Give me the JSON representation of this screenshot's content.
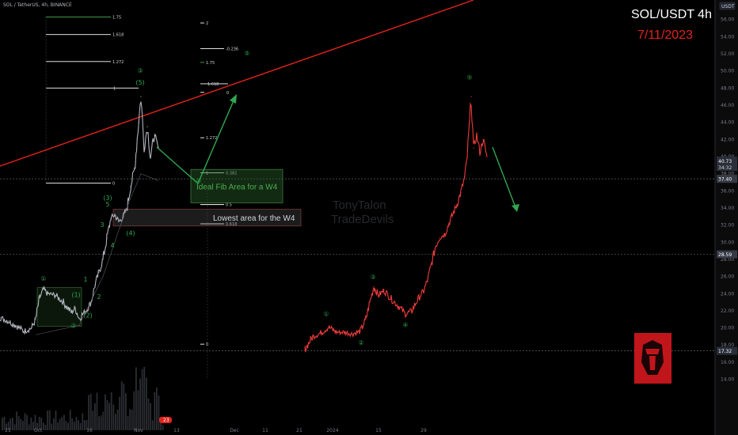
{
  "chart_data": {
    "type": "line",
    "title": "SOL/USDT 4h",
    "subtitle": "7/11/2023",
    "symbol_line": "SOL / TetherUS, 4h, BINANCE",
    "currency_badge": "USDT",
    "watermark_lines": [
      "TonyTalon",
      "TradeDevils"
    ],
    "x_ticks": [
      "21",
      "Oct",
      "16",
      "Nov",
      "13",
      "Dec",
      "11",
      "21",
      "2024",
      "15",
      "29"
    ],
    "y_ticks": [
      "56.00",
      "54.00",
      "52.00",
      "50.00",
      "48.00",
      "46.00",
      "44.00",
      "42.00",
      "40.00",
      "38.00",
      "36.00",
      "34.00",
      "32.00",
      "30.00",
      "28.00",
      "26.00",
      "24.00",
      "22.00",
      "20.00",
      "18.00",
      "16.00",
      "14.00"
    ],
    "ylim": [
      13.0,
      57.6
    ],
    "y_scale": "linear",
    "current_price_label": "40.73",
    "countdown_label": "34:32",
    "price_labels": [
      {
        "text": "37.40",
        "value": 37.4
      },
      {
        "text": "28.59",
        "value": 28.59
      },
      {
        "text": "17.32",
        "value": 17.32
      }
    ],
    "volume_label": "23",
    "series": [
      {
        "values_key": "historical 4h price (grey)",
        "points": [
          [
            0,
            21.2
          ],
          [
            10,
            20.8
          ],
          [
            20,
            20.3
          ],
          [
            30,
            19.6
          ],
          [
            40,
            20.0
          ],
          [
            45,
            21.0
          ],
          [
            50,
            23.5
          ],
          [
            55,
            24.5
          ],
          [
            60,
            24.0
          ],
          [
            70,
            23.8
          ],
          [
            80,
            23.0
          ],
          [
            90,
            21.8
          ],
          [
            95,
            22.3
          ],
          [
            100,
            21.1
          ],
          [
            110,
            22.2
          ],
          [
            115,
            23.0
          ],
          [
            120,
            25.0
          ],
          [
            125,
            26.5
          ],
          [
            130,
            28.0
          ],
          [
            135,
            30.5
          ],
          [
            140,
            32.8
          ],
          [
            145,
            33.2
          ],
          [
            150,
            32.4
          ],
          [
            155,
            32.9
          ],
          [
            160,
            33.8
          ],
          [
            165,
            36.5
          ],
          [
            170,
            38.6
          ],
          [
            175,
            44.0
          ],
          [
            178,
            47.0
          ],
          [
            182,
            41.0
          ],
          [
            186,
            43.5
          ],
          [
            190,
            40.0
          ],
          [
            195,
            42.5
          ],
          [
            200,
            41.0
          ]
        ]
      },
      {
        "values_key": "projected 4h price (red)",
        "points": [
          [
            385,
            17.5
          ],
          [
            395,
            19.0
          ],
          [
            405,
            19.4
          ],
          [
            415,
            20.1
          ],
          [
            425,
            19.5
          ],
          [
            435,
            19.5
          ],
          [
            445,
            19.3
          ],
          [
            455,
            19.6
          ],
          [
            462,
            21.0
          ],
          [
            467,
            23.0
          ],
          [
            472,
            24.8
          ],
          [
            478,
            23.8
          ],
          [
            485,
            24.4
          ],
          [
            495,
            23.3
          ],
          [
            505,
            22.4
          ],
          [
            512,
            21.6
          ],
          [
            520,
            22.0
          ],
          [
            528,
            23.4
          ],
          [
            535,
            24.3
          ],
          [
            540,
            25.6
          ],
          [
            545,
            27.5
          ],
          [
            550,
            29.5
          ],
          [
            555,
            30.5
          ],
          [
            562,
            31.0
          ],
          [
            567,
            32.2
          ],
          [
            572,
            33.3
          ],
          [
            577,
            34.4
          ],
          [
            582,
            35.8
          ],
          [
            587,
            37.6
          ],
          [
            590,
            40.0
          ],
          [
            593,
            44.0
          ],
          [
            595,
            47.0
          ],
          [
            598,
            41.0
          ],
          [
            602,
            42.5
          ],
          [
            606,
            40.5
          ],
          [
            610,
            42.0
          ],
          [
            615,
            40.0
          ]
        ]
      }
    ],
    "fib_levels": [
      {
        "label": "1.75",
        "value": 56.3,
        "color": "#4caf50"
      },
      {
        "label": "1.618",
        "value": 54.25,
        "color": "#ffffff"
      },
      {
        "label": "1.272",
        "value": 51.1,
        "color": "#ffffff"
      },
      {
        "label": "1",
        "value": 48.0,
        "color": "#ffffff"
      },
      {
        "label": "0",
        "value": 36.9,
        "color": "#ffffff"
      },
      {
        "label": "2",
        "value": 55.6,
        "color": "#ffffff"
      },
      {
        "label": "-0.236",
        "value": 52.6,
        "color": "#ffffff"
      },
      {
        "label": "1.75",
        "value": 51.0,
        "color": "#4caf50"
      },
      {
        "label": "1.618",
        "value": 48.5,
        "color": "#ffffff"
      },
      {
        "label": "0",
        "value": 47.5,
        "color": "#ffffff"
      },
      {
        "label": "1.272",
        "value": 42.2,
        "color": "#ffffff"
      },
      {
        "label": "1",
        "value": 38.1,
        "color": "#ffffff"
      },
      {
        "label": "0.382",
        "value": 38.1,
        "color": "#ffffff"
      },
      {
        "label": "0.5",
        "value": 34.4,
        "color": "#ffffff"
      },
      {
        "label": "0.618",
        "value": 32.15,
        "color": "#ffffff"
      },
      {
        "label": "0",
        "value": 18.1,
        "color": "#ffffff"
      }
    ],
    "boxes": [
      {
        "text": "Ideal Fib Area for a W4",
        "top_value": 38.5,
        "bottom_value": 34.6,
        "color": "#4caf50"
      },
      {
        "text": "Lowest area for the W4",
        "top_value": 33.85,
        "bottom_value": 31.9,
        "color": "#d1d4dc"
      }
    ],
    "wave_labels": [
      {
        "text": "①",
        "x": 55,
        "y": 25.5
      },
      {
        "text": "②",
        "x": 93,
        "y": 20.0
      },
      {
        "text": "③",
        "x": 177,
        "y": 49.8
      },
      {
        "text": "④",
        "x": 251,
        "y": 36.9
      },
      {
        "text": "⑤",
        "x": 312,
        "y": 51.8
      },
      {
        "text": "(1)",
        "x": 96,
        "y": 23.6
      },
      {
        "text": "(2)",
        "x": 111,
        "y": 21.2
      },
      {
        "text": "(3)",
        "x": 136,
        "y": 34.9
      },
      {
        "text": "(4)",
        "x": 165,
        "y": 30.8
      },
      {
        "text": "(5)",
        "x": 177,
        "y": 48.4
      },
      {
        "text": "1",
        "x": 108,
        "y": 25.4
      },
      {
        "text": "2",
        "x": 125,
        "y": 23.4
      },
      {
        "text": "3",
        "x": 129,
        "y": 31.8
      },
      {
        "text": "4",
        "x": 142,
        "y": 29.4
      },
      {
        "text": "5",
        "x": 136,
        "y": 34.2
      },
      {
        "text": "①",
        "x": 412,
        "y": 21.4
      },
      {
        "text": "②",
        "x": 456,
        "y": 18.0
      },
      {
        "text": "③",
        "x": 471,
        "y": 25.7
      },
      {
        "text": "④",
        "x": 512,
        "y": 20.1
      },
      {
        "text": "⑤",
        "x": 593,
        "y": 49.0
      }
    ]
  }
}
